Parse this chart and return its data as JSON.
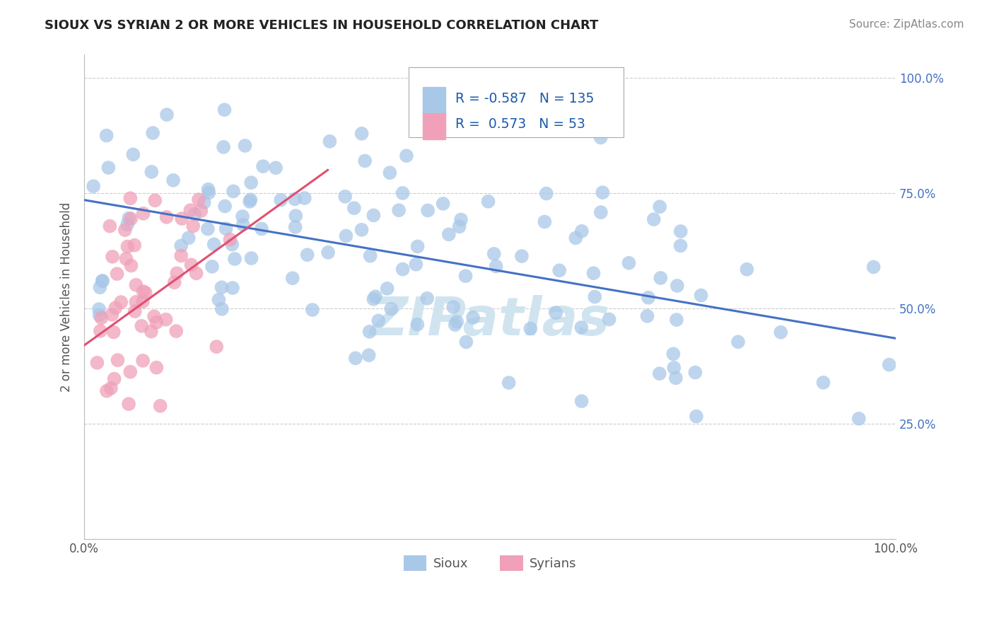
{
  "title": "SIOUX VS SYRIAN 2 OR MORE VEHICLES IN HOUSEHOLD CORRELATION CHART",
  "source": "Source: ZipAtlas.com",
  "ylabel": "2 or more Vehicles in Household",
  "legend_label_1": "Sioux",
  "legend_label_2": "Syrians",
  "R1": -0.587,
  "N1": 135,
  "R2": 0.573,
  "N2": 53,
  "x_min": 0.0,
  "x_max": 1.0,
  "y_min": 0.0,
  "y_max": 1.05,
  "color_sioux": "#A8C8E8",
  "color_syrians": "#F0A0B8",
  "color_line_sioux": "#4472C4",
  "color_line_syrians": "#E05070",
  "watermark": "ZIPatlas",
  "watermark_color": "#D0E4F0",
  "background_color": "#FFFFFF",
  "grid_color": "#CCCCCC",
  "sioux_line_x0": 0.0,
  "sioux_line_y0": 0.735,
  "sioux_line_x1": 1.0,
  "sioux_line_y1": 0.435,
  "syrian_line_x0": 0.0,
  "syrian_line_y0": 0.42,
  "syrian_line_x1": 0.3,
  "syrian_line_y1": 0.8
}
